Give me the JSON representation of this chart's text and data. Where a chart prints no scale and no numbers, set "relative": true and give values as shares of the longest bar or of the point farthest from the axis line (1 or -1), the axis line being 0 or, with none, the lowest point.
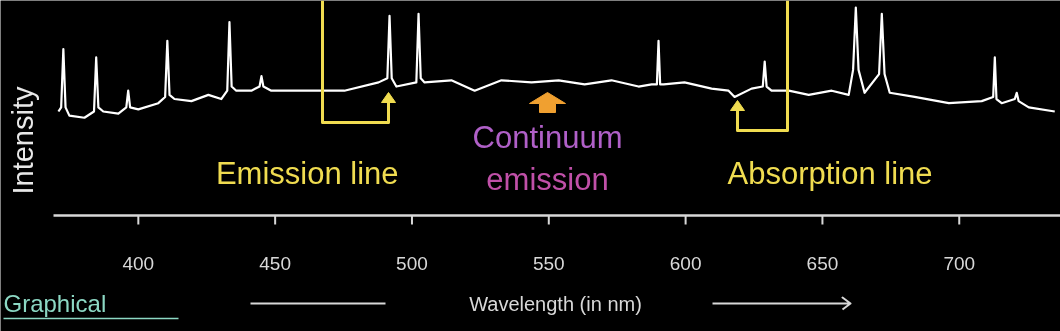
{
  "chart_data": {
    "type": "line",
    "relative": true,
    "xlim": [
      369,
      737
    ],
    "xticks": [
      400,
      450,
      500,
      550,
      600,
      650,
      700
    ],
    "xlabel": "Wavelength (in nm)",
    "ylabel": "Intensity",
    "color": "#ffffff",
    "x": [
      370.8,
      371.8,
      372.6,
      373.4,
      374.8,
      380.3,
      383.8,
      384.6,
      385.4,
      387.2,
      392.7,
      395.6,
      396.3,
      397,
      400,
      407.3,
      409.8,
      410.6,
      411.4,
      413.2,
      419.4,
      425.6,
      430.3,
      432.5,
      433.3,
      434.1,
      435.8,
      441.3,
      444.3,
      445,
      445.7,
      448.6,
      456,
      465.8,
      475.3,
      487.8,
      491,
      491.8,
      492.6,
      494.3,
      501.6,
      502.4,
      503.2,
      504.6,
      514.4,
      522.9,
      532.7,
      543.7,
      553.6,
      563.1,
      572.9,
      582.8,
      587.6,
      589.5,
      590.1,
      590.7,
      592,
      599.6,
      609.5,
      615.7,
      617.9,
      624.1,
      628.2,
      628.9,
      629.6,
      631.4,
      637.7,
      645,
      653.4,
      659.6,
      661.2,
      662.2,
      663.2,
      665.4,
      670.7,
      671.7,
      672.7,
      674.6,
      683.7,
      696.2,
      708.2,
      712.4,
      713,
      713.6,
      715.5,
      720.3,
      721,
      721.7,
      725.4,
      734.9
    ],
    "values": [
      0.5,
      0.52,
      0.8,
      0.52,
      0.48,
      0.47,
      0.5,
      0.76,
      0.52,
      0.5,
      0.49,
      0.52,
      0.6,
      0.52,
      0.51,
      0.54,
      0.57,
      0.84,
      0.58,
      0.56,
      0.55,
      0.58,
      0.56,
      0.6,
      0.93,
      0.62,
      0.6,
      0.6,
      0.62,
      0.67,
      0.62,
      0.6,
      0.6,
      0.6,
      0.6,
      0.64,
      0.66,
      0.96,
      0.66,
      0.62,
      0.64,
      0.97,
      0.66,
      0.64,
      0.65,
      0.6,
      0.65,
      0.64,
      0.65,
      0.63,
      0.65,
      0.62,
      0.63,
      0.63,
      0.84,
      0.63,
      0.63,
      0.64,
      0.61,
      0.6,
      0.57,
      0.61,
      0.62,
      0.74,
      0.62,
      0.6,
      0.6,
      0.58,
      0.6,
      0.58,
      0.7,
      1.0,
      0.7,
      0.59,
      0.68,
      0.97,
      0.68,
      0.59,
      0.57,
      0.54,
      0.55,
      0.57,
      0.76,
      0.56,
      0.54,
      0.56,
      0.59,
      0.55,
      0.52,
      0.5
    ],
    "annotations": [
      "Emission line",
      "Continuum emission",
      "Absorption line",
      "Graphical"
    ]
  }
}
